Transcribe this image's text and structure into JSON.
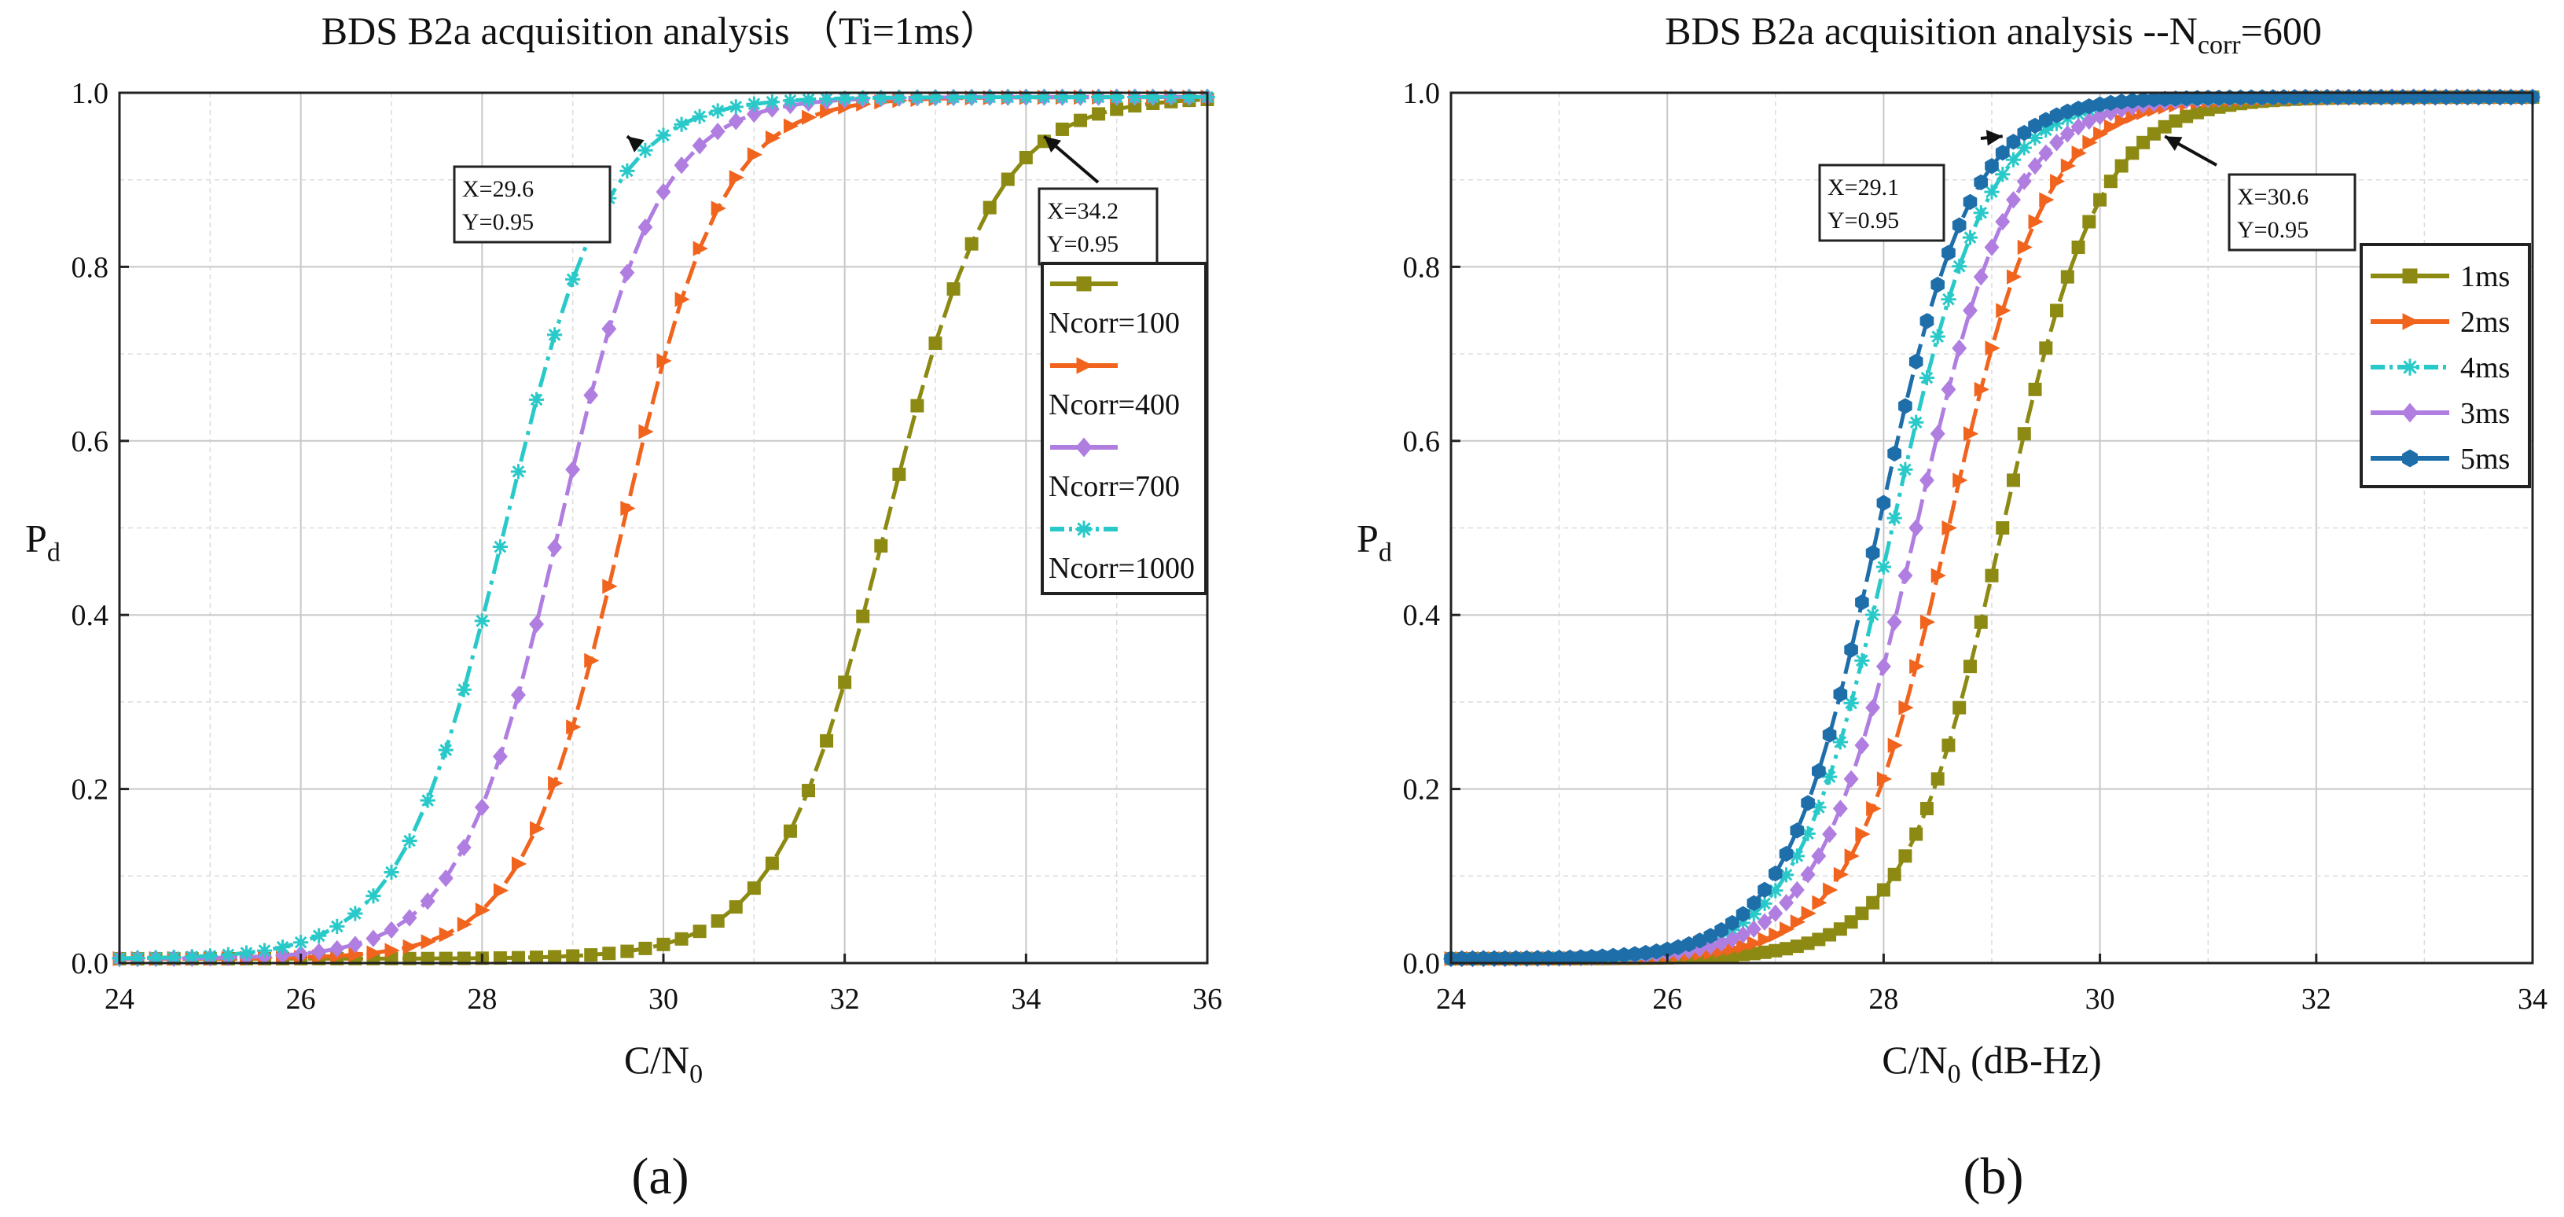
{
  "chart_data": [
    {
      "panel": "(a)",
      "type": "line",
      "title": "BDS B2a acquisition analysis （Ti=1ms）",
      "xlabel": "C/N",
      "xlabel_sub": "0",
      "ylabel": "P",
      "ylabel_sub": "d",
      "xlim": [
        24,
        36
      ],
      "ylim": [
        0,
        1
      ],
      "xticks": [
        "24",
        "26",
        "28",
        "30",
        "32",
        "34",
        "36"
      ],
      "yticks": [
        "0.0",
        "0.2",
        "0.4",
        "0.6",
        "0.8",
        "1.0"
      ],
      "grid": true,
      "legend_position": "right",
      "x_step": 0.2,
      "series": [
        {
          "name": "Ncorr=100",
          "color": "#8c8a12",
          "marker": "square",
          "dash": "long",
          "mid": 32.45,
          "scale": 0.6,
          "x_start": 24,
          "x_end": 36
        },
        {
          "name": "Ncorr=400",
          "color": "#f0641e",
          "marker": "triangle-right",
          "dash": "long",
          "mid": 29.55,
          "scale": 0.55,
          "x_start": 24,
          "x_end": 36
        },
        {
          "name": "Ncorr=700",
          "color": "#b07ee0",
          "marker": "diamond",
          "dash": "long",
          "mid": 28.85,
          "scale": 0.55,
          "x_start": 24,
          "x_end": 36
        },
        {
          "name": "Ncorr=1000",
          "color": "#29c9c9",
          "marker": "asterisk",
          "dash": "dashdot",
          "mid": 28.25,
          "scale": 0.57,
          "x_start": 24,
          "x_end": 36
        }
      ],
      "annotations": [
        {
          "text1": "X=29.6",
          "text2": "Y=0.95",
          "x": 29.6,
          "y": 0.95
        },
        {
          "text1": "X=34.2",
          "text2": "Y=0.95",
          "x": 34.2,
          "y": 0.95
        }
      ]
    },
    {
      "panel": "(b)",
      "type": "line",
      "title": "BDS B2a acquisition analysis --N",
      "title_sub": "corr",
      "title_end": "=600",
      "xlabel": "C/N",
      "xlabel_sub": "0",
      "xlabel_unit": " (dB-Hz)",
      "ylabel": "P",
      "ylabel_sub": "d",
      "xlim": [
        24,
        34
      ],
      "ylim": [
        0,
        1
      ],
      "xticks": [
        "24",
        "26",
        "28",
        "30",
        "32",
        "34"
      ],
      "yticks": [
        "0.0",
        "0.2",
        "0.4",
        "0.6",
        "0.8",
        "1.0"
      ],
      "grid": true,
      "legend_position": "top-right",
      "x_step": 0.1,
      "series": [
        {
          "name": "1ms",
          "color": "#8c8a12",
          "marker": "square",
          "dash": "long",
          "mid": 29.1,
          "scale": 0.45,
          "x_start": 24,
          "x_end": 34
        },
        {
          "name": "2ms",
          "color": "#f0641e",
          "marker": "triangle-right",
          "dash": "long",
          "mid": 28.6,
          "scale": 0.45,
          "x_start": 24,
          "x_end": 34
        },
        {
          "name": "4ms",
          "color": "#29c9c9",
          "marker": "asterisk",
          "dash": "dashdot",
          "mid": 28.08,
          "scale": 0.44,
          "x_start": 24,
          "x_end": 34
        },
        {
          "name": "3ms",
          "color": "#b07ee0",
          "marker": "diamond",
          "dash": "long",
          "mid": 28.3,
          "scale": 0.45,
          "x_start": 24,
          "x_end": 34
        },
        {
          "name": "5ms",
          "color": "#1e6eaa",
          "marker": "hexagon",
          "dash": "long",
          "mid": 27.95,
          "scale": 0.43,
          "x_start": 24,
          "x_end": 34
        }
      ],
      "annotations": [
        {
          "text1": "X=29.1",
          "text2": "Y=0.95",
          "x": 29.1,
          "y": 0.95
        },
        {
          "text1": "X=30.6",
          "text2": "Y=0.95",
          "x": 30.6,
          "y": 0.95
        }
      ]
    }
  ]
}
